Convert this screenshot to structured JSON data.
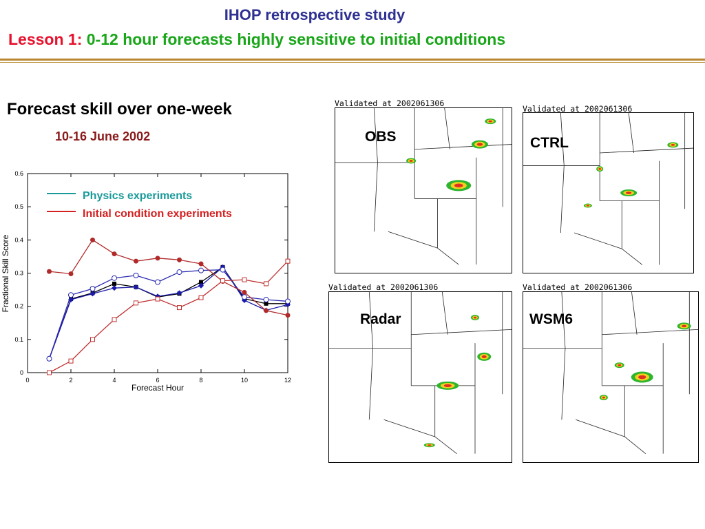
{
  "header": {
    "title": "IHOP retrospective study",
    "lesson_prefix": "Lesson 1:",
    "lesson_text": "0-12 hour forecasts highly sensitive to initial conditions"
  },
  "section": {
    "heading": "Forecast skill over one-week",
    "dates": "10-16 June 2002"
  },
  "colors": {
    "title": "#2e3192",
    "lesson_prefix": "#e8112d",
    "lesson_text": "#19a619",
    "dates": "#8b1a1a",
    "physics": "#1a9a9a",
    "initial_condition": "#d42020",
    "rule": "#b8862e"
  },
  "chart_data": {
    "type": "line",
    "xlabel": "Forecast Hour",
    "ylabel": "Fractional Skill Score",
    "xlim": [
      0,
      12
    ],
    "ylim": [
      0,
      0.6
    ],
    "xticks": [
      0,
      2,
      4,
      6,
      8,
      10,
      12
    ],
    "yticks": [
      0,
      0.1,
      0.2,
      0.3,
      0.4,
      0.5,
      0.6
    ],
    "grid": false,
    "legend_position": "top-left",
    "legend": [
      {
        "label": "Physics experiments",
        "color": "#1a9a9a"
      },
      {
        "label": "Initial condition experiments",
        "color": "#d42020"
      }
    ],
    "x": [
      1,
      2,
      3,
      4,
      5,
      6,
      7,
      8,
      9,
      10,
      11,
      12
    ],
    "series": [
      {
        "color": "#000000",
        "marker": "filled-square",
        "values": [
          0.042,
          0.222,
          0.24,
          0.268,
          0.258,
          0.228,
          0.238,
          0.273,
          0.318,
          0.223,
          0.208,
          0.208
        ]
      },
      {
        "color": "#1a1aaa",
        "marker": "filled-diamond",
        "values": [
          0.042,
          0.22,
          0.238,
          0.255,
          0.258,
          0.23,
          0.24,
          0.262,
          0.318,
          0.218,
          0.188,
          0.205
        ]
      },
      {
        "color": "#2a2ab0",
        "marker": "open-circle",
        "values": [
          0.042,
          0.234,
          0.253,
          0.285,
          0.293,
          0.273,
          0.303,
          0.308,
          0.31,
          0.228,
          0.22,
          0.215
        ]
      },
      {
        "color": "#b02a2a",
        "marker": "filled-circle",
        "values": [
          0.305,
          0.298,
          0.4,
          0.358,
          0.336,
          0.345,
          0.34,
          0.328,
          0.275,
          0.242,
          0.187,
          0.173
        ]
      },
      {
        "color": "#c03030",
        "marker": "open-square",
        "values": [
          0.0,
          0.035,
          0.1,
          0.16,
          0.21,
          0.222,
          0.196,
          0.226,
          0.277,
          0.28,
          0.268,
          0.336
        ]
      }
    ]
  },
  "panels": [
    {
      "validated": "Validated at 2002061306",
      "label": "OBS"
    },
    {
      "validated": "Validated at 2002061306",
      "label": "CTRL"
    },
    {
      "validated": "Validated at 2002061306",
      "label": "Radar"
    },
    {
      "validated": "Validated at 2002061306",
      "label": "WSM6"
    }
  ]
}
